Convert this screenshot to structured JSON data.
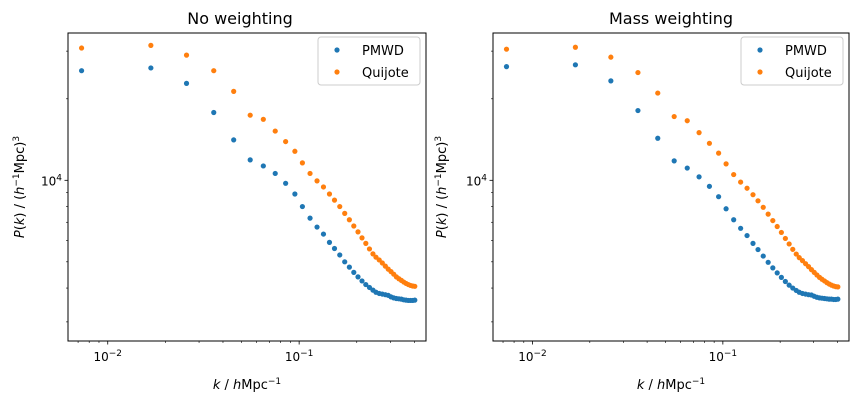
{
  "chart_data": [
    {
      "type": "scatter",
      "title": "No weighting",
      "xlabel": "k / hMpc⁻¹",
      "ylabel": "P(k) / (h⁻¹Mpc)³",
      "x_scale": "log",
      "y_scale": "log",
      "xlim": [
        0.0062,
        0.46
      ],
      "ylim": [
        2550,
        35000
      ],
      "x_ticks": [
        {
          "value": 0.01,
          "base": "10",
          "exp": "−2"
        },
        {
          "value": 0.1,
          "base": "10",
          "exp": "−1"
        }
      ],
      "y_ticks": [
        {
          "value": 10000,
          "base": "10",
          "exp": "4"
        }
      ],
      "legend": "top-right",
      "grid": false,
      "series": [
        {
          "name": "PMWD",
          "color": "#1f77b4",
          "points": [
            [
              0.0073,
              25400
            ],
            [
              0.0168,
              26000
            ],
            [
              0.0258,
              22800
            ],
            [
              0.0358,
              17800
            ],
            [
              0.0455,
              14100
            ],
            [
              0.0555,
              11900
            ],
            [
              0.065,
              11300
            ],
            [
              0.075,
              10600
            ],
            [
              0.085,
              9750
            ],
            [
              0.095,
              8900
            ],
            [
              0.104,
              8000
            ],
            [
              0.114,
              7250
            ],
            [
              0.124,
              6720
            ],
            [
              0.134,
              6330
            ],
            [
              0.144,
              5900
            ],
            [
              0.153,
              5600
            ],
            [
              0.163,
              5300
            ],
            [
              0.173,
              5000
            ],
            [
              0.183,
              4780
            ],
            [
              0.193,
              4570
            ],
            [
              0.203,
              4400
            ],
            [
              0.213,
              4250
            ],
            [
              0.223,
              4120
            ],
            [
              0.233,
              4020
            ],
            [
              0.243,
              3930
            ],
            [
              0.252,
              3860
            ],
            [
              0.262,
              3820
            ],
            [
              0.272,
              3800
            ],
            [
              0.282,
              3780
            ],
            [
              0.292,
              3760
            ],
            [
              0.302,
              3710
            ],
            [
              0.312,
              3680
            ],
            [
              0.322,
              3660
            ],
            [
              0.332,
              3650
            ],
            [
              0.342,
              3640
            ],
            [
              0.352,
              3620
            ],
            [
              0.362,
              3610
            ],
            [
              0.372,
              3600
            ],
            [
              0.382,
              3600
            ],
            [
              0.392,
              3600
            ],
            [
              0.402,
              3610
            ]
          ]
        },
        {
          "name": "Quijote",
          "color": "#ff7f0e",
          "points": [
            [
              0.0073,
              30800
            ],
            [
              0.0168,
              31500
            ],
            [
              0.0258,
              29000
            ],
            [
              0.0358,
              25400
            ],
            [
              0.0455,
              21300
            ],
            [
              0.0555,
              17400
            ],
            [
              0.065,
              16800
            ],
            [
              0.075,
              15200
            ],
            [
              0.085,
              13900
            ],
            [
              0.095,
              12800
            ],
            [
              0.104,
              11600
            ],
            [
              0.114,
              10600
            ],
            [
              0.124,
              9950
            ],
            [
              0.134,
              9450
            ],
            [
              0.144,
              8900
            ],
            [
              0.153,
              8450
            ],
            [
              0.163,
              8000
            ],
            [
              0.173,
              7550
            ],
            [
              0.183,
              7150
            ],
            [
              0.193,
              6780
            ],
            [
              0.203,
              6450
            ],
            [
              0.213,
              6130
            ],
            [
              0.223,
              5850
            ],
            [
              0.233,
              5580
            ],
            [
              0.243,
              5350
            ],
            [
              0.252,
              5200
            ],
            [
              0.262,
              5080
            ],
            [
              0.272,
              4950
            ],
            [
              0.282,
              4820
            ],
            [
              0.292,
              4700
            ],
            [
              0.302,
              4600
            ],
            [
              0.312,
              4500
            ],
            [
              0.322,
              4400
            ],
            [
              0.332,
              4330
            ],
            [
              0.342,
              4270
            ],
            [
              0.352,
              4210
            ],
            [
              0.362,
              4160
            ],
            [
              0.372,
              4120
            ],
            [
              0.382,
              4090
            ],
            [
              0.392,
              4070
            ],
            [
              0.402,
              4060
            ]
          ]
        }
      ]
    },
    {
      "type": "scatter",
      "title": "Mass weighting",
      "xlabel": "k / hMpc⁻¹",
      "ylabel": "P(k) / (h⁻¹Mpc)³",
      "x_scale": "log",
      "y_scale": "log",
      "xlim": [
        0.0062,
        0.46
      ],
      "ylim": [
        2550,
        35000
      ],
      "x_ticks": [
        {
          "value": 0.01,
          "base": "10",
          "exp": "−2"
        },
        {
          "value": 0.1,
          "base": "10",
          "exp": "−1"
        }
      ],
      "y_ticks": [
        {
          "value": 10000,
          "base": "10",
          "exp": "4"
        }
      ],
      "legend": "top-right",
      "grid": false,
      "series": [
        {
          "name": "PMWD",
          "color": "#1f77b4",
          "points": [
            [
              0.0073,
              26300
            ],
            [
              0.0168,
              26700
            ],
            [
              0.0258,
              23300
            ],
            [
              0.0358,
              18100
            ],
            [
              0.0455,
              14300
            ],
            [
              0.0555,
              11800
            ],
            [
              0.065,
              11100
            ],
            [
              0.075,
              10300
            ],
            [
              0.085,
              9500
            ],
            [
              0.095,
              8700
            ],
            [
              0.104,
              7850
            ],
            [
              0.114,
              7150
            ],
            [
              0.124,
              6650
            ],
            [
              0.134,
              6250
            ],
            [
              0.144,
              5850
            ],
            [
              0.153,
              5550
            ],
            [
              0.163,
              5250
            ],
            [
              0.173,
              4980
            ],
            [
              0.183,
              4750
            ],
            [
              0.193,
              4550
            ],
            [
              0.203,
              4380
            ],
            [
              0.213,
              4230
            ],
            [
              0.223,
              4100
            ],
            [
              0.233,
              4000
            ],
            [
              0.243,
              3920
            ],
            [
              0.252,
              3860
            ],
            [
              0.262,
              3820
            ],
            [
              0.272,
              3800
            ],
            [
              0.282,
              3780
            ],
            [
              0.292,
              3770
            ],
            [
              0.302,
              3730
            ],
            [
              0.312,
              3700
            ],
            [
              0.322,
              3680
            ],
            [
              0.332,
              3670
            ],
            [
              0.342,
              3660
            ],
            [
              0.352,
              3650
            ],
            [
              0.362,
              3640
            ],
            [
              0.372,
              3640
            ],
            [
              0.382,
              3630
            ],
            [
              0.392,
              3630
            ],
            [
              0.402,
              3640
            ]
          ]
        },
        {
          "name": "Quijote",
          "color": "#ff7f0e",
          "points": [
            [
              0.0073,
              30500
            ],
            [
              0.0168,
              31000
            ],
            [
              0.0258,
              28500
            ],
            [
              0.0358,
              25000
            ],
            [
              0.0455,
              21000
            ],
            [
              0.0555,
              17200
            ],
            [
              0.065,
              16600
            ],
            [
              0.075,
              15000
            ],
            [
              0.085,
              13700
            ],
            [
              0.095,
              12600
            ],
            [
              0.104,
              11500
            ],
            [
              0.114,
              10500
            ],
            [
              0.124,
              9850
            ],
            [
              0.134,
              9350
            ],
            [
              0.144,
              8850
            ],
            [
              0.153,
              8400
            ],
            [
              0.163,
              7950
            ],
            [
              0.173,
              7500
            ],
            [
              0.183,
              7100
            ],
            [
              0.193,
              6750
            ],
            [
              0.203,
              6420
            ],
            [
              0.213,
              6100
            ],
            [
              0.223,
              5820
            ],
            [
              0.233,
              5560
            ],
            [
              0.243,
              5340
            ],
            [
              0.252,
              5180
            ],
            [
              0.262,
              5050
            ],
            [
              0.272,
              4920
            ],
            [
              0.282,
              4800
            ],
            [
              0.292,
              4680
            ],
            [
              0.302,
              4570
            ],
            [
              0.312,
              4470
            ],
            [
              0.322,
              4380
            ],
            [
              0.332,
              4310
            ],
            [
              0.342,
              4250
            ],
            [
              0.352,
              4190
            ],
            [
              0.362,
              4140
            ],
            [
              0.372,
              4100
            ],
            [
              0.382,
              4070
            ],
            [
              0.392,
              4050
            ],
            [
              0.402,
              4040
            ]
          ]
        }
      ]
    }
  ]
}
